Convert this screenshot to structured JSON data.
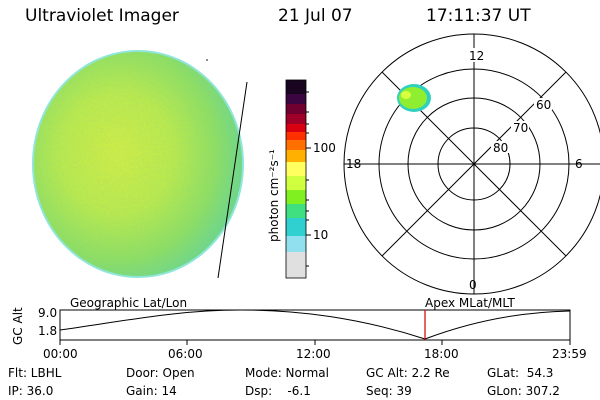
{
  "header": {
    "title": "Ultraviolet Imager",
    "date": "21 Jul 07",
    "time": "17:11:37 UT"
  },
  "colorbar": {
    "unit_label": "photon cm⁻²s⁻¹",
    "tick_100": "100",
    "tick_10": "10",
    "colors_top_to_bottom": [
      "#1a0520",
      "#3a0540",
      "#700030",
      "#a00028",
      "#d80010",
      "#ff3000",
      "#ff7000",
      "#ffb000",
      "#ffff60",
      "#d0ff40",
      "#80f020",
      "#40e080",
      "#30d0d0",
      "#90e0f0",
      "#e0e0e0"
    ]
  },
  "polar": {
    "mlt_top": "12",
    "mlt_left": "18",
    "mlt_right": "6",
    "mlt_bottom": "0",
    "lat_60": "60",
    "lat_70": "70",
    "lat_80": "80"
  },
  "timeline": {
    "y_label": "GC Alt",
    "y_top": "9.0",
    "y_bottom": "1.8",
    "left_title": "Geographic Lat/Lon",
    "right_title": "Apex MLat/MLT",
    "x_ticks": [
      "00:00",
      "06:00",
      "12:00",
      "18:00",
      "23:59"
    ]
  },
  "footer": {
    "flt": "Flt: LBHL",
    "ip": "IP: 36.0",
    "door": "Door: Open",
    "gain": "Gain: 14",
    "mode": "Mode: Normal",
    "dsp": "Dsp:    -6.1",
    "gc_alt": "GC Alt: 2.2 Re",
    "seq": "Seq: 39",
    "glat": "GLat:  54.3",
    "glon": "GLon: 307.2"
  }
}
